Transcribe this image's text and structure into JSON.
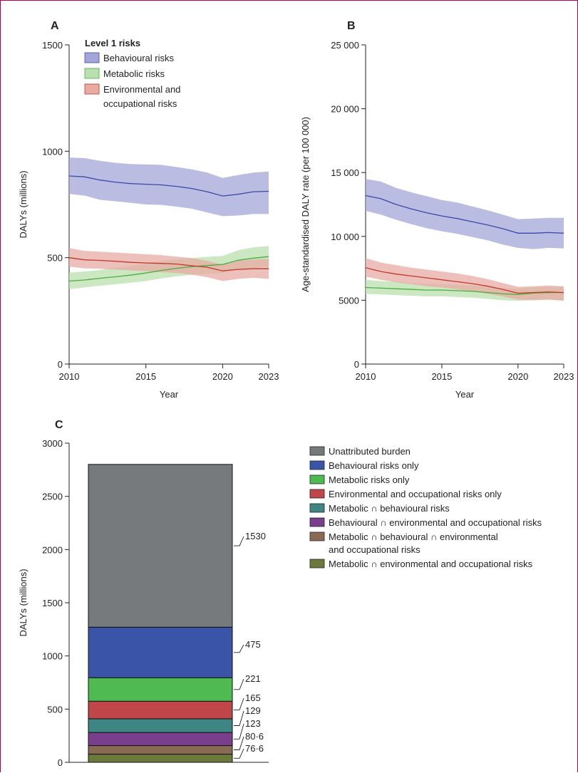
{
  "colors": {
    "behavioural": "#3b4aa8",
    "behavioural_band": "#a3a5d8",
    "metabolic": "#4cad3f",
    "metabolic_band": "#b9e0ae",
    "environmental": "#c0392b",
    "environmental_band": "#e8aba4",
    "gray": "#767a7d",
    "teal": "#3e8583",
    "purple": "#7a3f8c",
    "brown": "#8a6a55",
    "olive": "#6b7a3a",
    "blue": "#3a55a8",
    "green": "#4fba52",
    "red": "#c0464a"
  },
  "chart_data": [
    {
      "panel": "A",
      "type": "line",
      "xlabel": "Year",
      "ylabel": "DALYs (millions)",
      "xlim": [
        2010,
        2023
      ],
      "ylim": [
        0,
        1500
      ],
      "xticks": [
        "2010",
        "2015",
        "2020",
        "2023"
      ],
      "yticks": [
        "0",
        "500",
        "1000",
        "1500"
      ],
      "legend_title": "Level 1 risks",
      "legend": [
        "Behavioural risks",
        "Metabolic risks",
        "Environmental and",
        "occupational risks"
      ],
      "x": [
        2010,
        2011,
        2012,
        2013,
        2014,
        2015,
        2016,
        2017,
        2018,
        2019,
        2020,
        2021,
        2022,
        2023
      ],
      "series": [
        {
          "name": "Behavioural risks",
          "values": [
            884,
            880,
            865,
            855,
            848,
            845,
            842,
            835,
            825,
            810,
            790,
            798,
            810,
            812
          ],
          "upper": [
            970,
            968,
            955,
            946,
            940,
            938,
            936,
            926,
            915,
            900,
            875,
            888,
            900,
            905
          ],
          "lower": [
            800,
            792,
            772,
            765,
            758,
            750,
            748,
            740,
            730,
            712,
            695,
            698,
            705,
            705
          ]
        },
        {
          "name": "Metabolic risks",
          "values": [
            390,
            395,
            403,
            410,
            418,
            428,
            440,
            450,
            458,
            463,
            468,
            488,
            498,
            505
          ],
          "upper": [
            430,
            435,
            442,
            452,
            462,
            472,
            484,
            492,
            498,
            504,
            508,
            535,
            548,
            555
          ],
          "lower": [
            352,
            360,
            368,
            375,
            382,
            390,
            402,
            412,
            420,
            425,
            428,
            445,
            452,
            458
          ]
        },
        {
          "name": "Environmental and occupational risks",
          "values": [
            500,
            490,
            487,
            483,
            478,
            475,
            473,
            470,
            462,
            455,
            438,
            445,
            448,
            448
          ],
          "upper": [
            545,
            532,
            528,
            524,
            520,
            516,
            512,
            505,
            498,
            485,
            468,
            485,
            492,
            495
          ],
          "lower": [
            458,
            450,
            448,
            444,
            440,
            436,
            432,
            428,
            420,
            408,
            390,
            400,
            405,
            400
          ]
        }
      ]
    },
    {
      "panel": "B",
      "type": "line",
      "xlabel": "Year",
      "ylabel": "Age-standardised DALY rate (per 100 000)",
      "xlim": [
        2010,
        2023
      ],
      "ylim": [
        0,
        25000
      ],
      "xticks": [
        "2010",
        "2015",
        "2020",
        "2023"
      ],
      "yticks": [
        "0",
        "5000",
        "10 000",
        "15 000",
        "20 000",
        "25 000"
      ],
      "x": [
        2010,
        2011,
        2012,
        2013,
        2014,
        2015,
        2016,
        2017,
        2018,
        2019,
        2020,
        2021,
        2022,
        2023
      ],
      "series": [
        {
          "name": "Behavioural risks",
          "values": [
            13200,
            12950,
            12500,
            12150,
            11850,
            11600,
            11400,
            11150,
            10900,
            10600,
            10250,
            10250,
            10300,
            10250
          ],
          "upper": [
            14500,
            14300,
            13800,
            13450,
            13150,
            12850,
            12650,
            12350,
            12050,
            11700,
            11350,
            11400,
            11450,
            11450
          ],
          "lower": [
            12000,
            11700,
            11300,
            10950,
            10650,
            10400,
            10200,
            9950,
            9700,
            9350,
            9100,
            9000,
            9100,
            9050
          ]
        },
        {
          "name": "Metabolic risks",
          "values": [
            6000,
            5950,
            5900,
            5850,
            5800,
            5800,
            5750,
            5700,
            5600,
            5500,
            5450,
            5550,
            5600,
            5600
          ],
          "upper": [
            6600,
            6500,
            6450,
            6350,
            6300,
            6250,
            6200,
            6150,
            6050,
            5950,
            5900,
            6000,
            6050,
            6050
          ],
          "lower": [
            5500,
            5450,
            5400,
            5350,
            5300,
            5300,
            5250,
            5200,
            5100,
            5000,
            4950,
            5000,
            5050,
            5000
          ]
        },
        {
          "name": "Environmental and occupational risks",
          "values": [
            7550,
            7250,
            7050,
            6900,
            6750,
            6600,
            6450,
            6300,
            6100,
            5850,
            5550,
            5600,
            5650,
            5600
          ],
          "upper": [
            8300,
            7950,
            7750,
            7550,
            7400,
            7250,
            7100,
            6900,
            6650,
            6350,
            6050,
            6100,
            6150,
            6100
          ],
          "lower": [
            6850,
            6600,
            6400,
            6250,
            6100,
            6000,
            5850,
            5700,
            5500,
            5300,
            5050,
            5000,
            5050,
            4950
          ]
        }
      ]
    },
    {
      "panel": "C",
      "type": "bar",
      "stacked": true,
      "ylabel": "DALYs (millions)",
      "ylim": [
        0,
        3000
      ],
      "yticks": [
        "0",
        "500",
        "1000",
        "1500",
        "2000",
        "2500",
        "3000"
      ],
      "segments": [
        {
          "name": "Metabolic ∩ environmental and occupational risks",
          "value": 76.6,
          "label": "76·6",
          "color": "#6b7a3a"
        },
        {
          "name": "Metabolic ∩ behavioural ∩ environmental and occupational risks",
          "value": 80.6,
          "label": "80·6",
          "color": "#8a6a55"
        },
        {
          "name": "Behavioural ∩ environmental and occupational risks",
          "value": 123,
          "label": "123",
          "color": "#7a3f8c"
        },
        {
          "name": "Metabolic ∩ behavioural risks",
          "value": 129,
          "label": "129",
          "color": "#3e8583"
        },
        {
          "name": "Environmental and occupational risks only",
          "value": 165,
          "label": "165",
          "color": "#c0464a"
        },
        {
          "name": "Metabolic risks only",
          "value": 221,
          "label": "221",
          "color": "#4fba52"
        },
        {
          "name": "Behavioural risks only",
          "value": 475,
          "label": "475",
          "color": "#3a55a8"
        },
        {
          "name": "Unattributed burden",
          "value": 1530,
          "label": "1530",
          "color": "#767a7d"
        }
      ],
      "legend": [
        {
          "text": "Unattributed burden",
          "color": "#767a7d"
        },
        {
          "text": "Behavioural risks only",
          "color": "#3a55a8"
        },
        {
          "text": "Metabolic risks only",
          "color": "#4fba52"
        },
        {
          "text": "Environmental and occupational risks only",
          "color": "#c0464a"
        },
        {
          "text": "Metabolic ∩ behavioural risks",
          "color": "#3e8583"
        },
        {
          "text": "Behavioural ∩ environmental and occupational risks",
          "color": "#7a3f8c"
        },
        {
          "text": "Metabolic ∩ behavioural ∩ environmental",
          "text2": "and occupational risks",
          "color": "#8a6a55"
        },
        {
          "text": "Metabolic ∩ environmental and occupational risks",
          "color": "#6b7a3a"
        }
      ]
    }
  ]
}
